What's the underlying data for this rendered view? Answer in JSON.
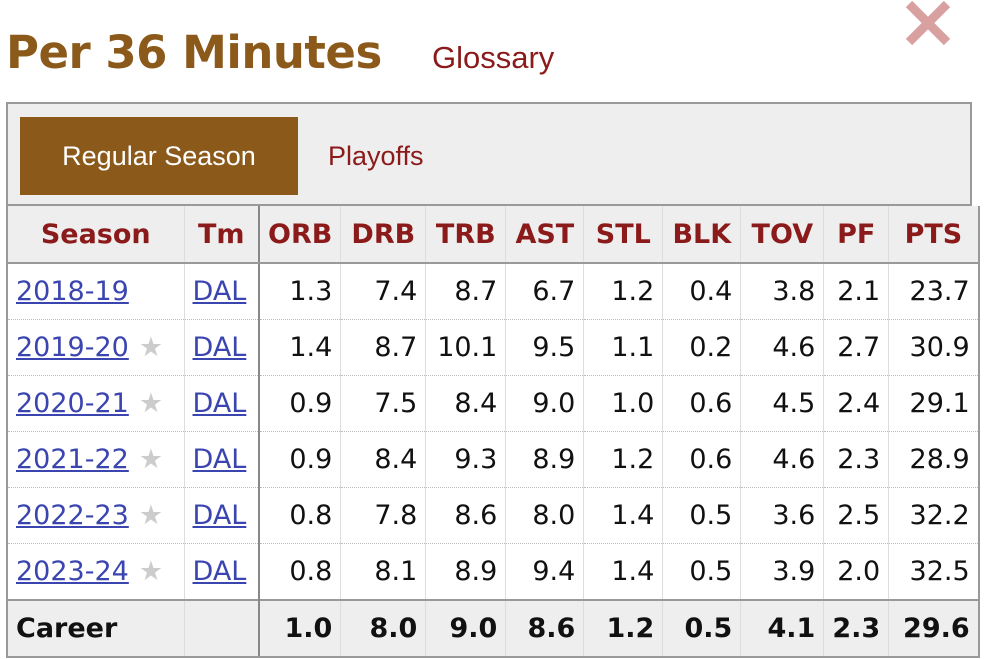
{
  "title": "Per 36 Minutes",
  "glossary": "Glossary",
  "tabs": [
    {
      "label": "Regular Season",
      "active": true
    },
    {
      "label": "Playoffs",
      "active": false
    }
  ],
  "columns": [
    "Season",
    "Tm",
    "ORB",
    "DRB",
    "TRB",
    "AST",
    "STL",
    "BLK",
    "TOV",
    "PF",
    "PTS"
  ],
  "rows": [
    {
      "season": "2018-19",
      "star": false,
      "tm": "DAL",
      "stats": [
        "1.3",
        "7.4",
        "8.7",
        "6.7",
        "1.2",
        "0.4",
        "3.8",
        "2.1",
        "23.7"
      ]
    },
    {
      "season": "2019-20",
      "star": true,
      "tm": "DAL",
      "stats": [
        "1.4",
        "8.7",
        "10.1",
        "9.5",
        "1.1",
        "0.2",
        "4.6",
        "2.7",
        "30.9"
      ]
    },
    {
      "season": "2020-21",
      "star": true,
      "tm": "DAL",
      "stats": [
        "0.9",
        "7.5",
        "8.4",
        "9.0",
        "1.0",
        "0.6",
        "4.5",
        "2.4",
        "29.1"
      ]
    },
    {
      "season": "2021-22",
      "star": true,
      "tm": "DAL",
      "stats": [
        "0.9",
        "8.4",
        "9.3",
        "8.9",
        "1.2",
        "0.6",
        "4.6",
        "2.3",
        "28.9"
      ]
    },
    {
      "season": "2022-23",
      "star": true,
      "tm": "DAL",
      "stats": [
        "0.8",
        "7.8",
        "8.6",
        "8.0",
        "1.4",
        "0.5",
        "3.6",
        "2.5",
        "32.2"
      ]
    },
    {
      "season": "2023-24",
      "star": true,
      "tm": "DAL",
      "stats": [
        "0.8",
        "8.1",
        "8.9",
        "9.4",
        "1.4",
        "0.5",
        "3.9",
        "2.0",
        "32.5"
      ]
    }
  ],
  "career": {
    "label": "Career",
    "tm": "",
    "stats": [
      "1.0",
      "8.0",
      "9.0",
      "8.6",
      "1.2",
      "0.5",
      "4.1",
      "2.3",
      "29.6"
    ]
  },
  "colors": {
    "brand": "#8b5a1b",
    "header_text": "#8b1a1a",
    "link": "#3a45b0",
    "close": "#d9a0a0"
  },
  "icons": {
    "close": "close-icon",
    "star": "star-icon"
  }
}
